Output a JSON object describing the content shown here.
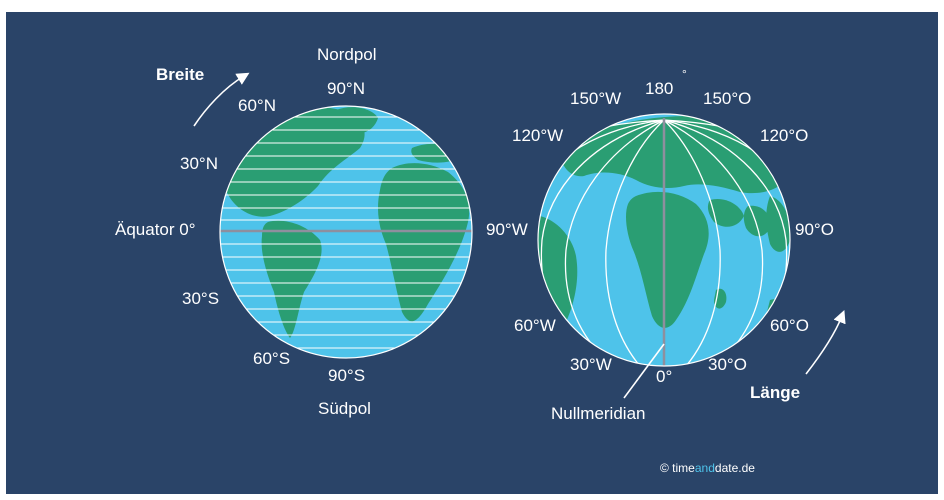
{
  "colors": {
    "background": "#2a4468",
    "ocean": "#4ec3ea",
    "land": "#2a9e73",
    "grid_lines": "#ffffff",
    "reference_line": "#8e8f9e"
  },
  "left_globe": {
    "heading": "Breite",
    "north_pole": "Nordpol",
    "south_pole": "Südpol",
    "lat_90n": "90°N",
    "lat_60n": "60°N",
    "lat_30n": "30°N",
    "equator": "Äquator 0°",
    "lat_30s": "30°S",
    "lat_60s": "60°S",
    "lat_90s": "90°S"
  },
  "right_globe": {
    "heading": "Länge",
    "lon_180": "180",
    "lon_180_degree": "°",
    "lon_150w": "150°W",
    "lon_150o": "150°O",
    "lon_120w": "120°W",
    "lon_120o": "120°O",
    "lon_90w": "90°W",
    "lon_90o": "90°O",
    "lon_60w": "60°W",
    "lon_60o": "60°O",
    "lon_30w": "30°W",
    "lon_30o": "30°O",
    "lon_0": "0°",
    "prime_meridian": "Nullmeridian"
  },
  "credit": {
    "prefix": "© time",
    "highlight": "and",
    "suffix": "date.de"
  }
}
